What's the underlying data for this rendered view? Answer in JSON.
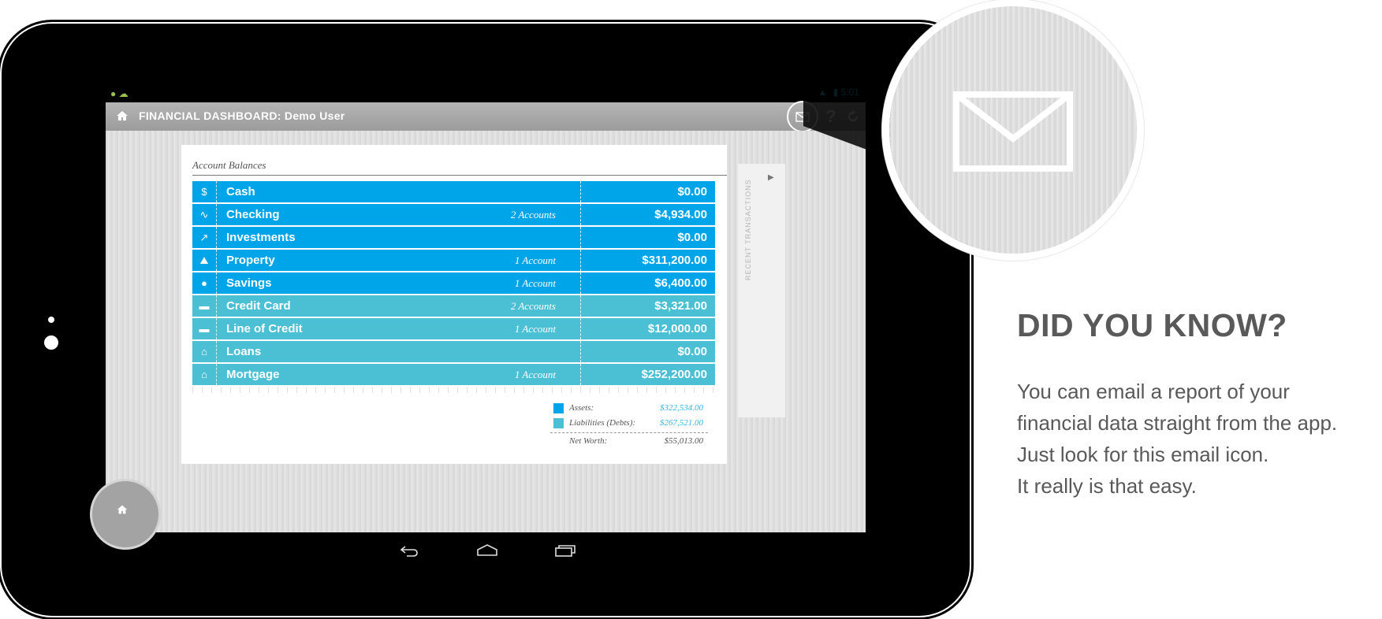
{
  "app": {
    "status_bar": {
      "time": "5:01"
    },
    "action_bar": {
      "title": "FINANCIAL DASHBOARD: Demo User",
      "help_label": "?",
      "refresh_icon": "refresh-icon",
      "mail_icon": "mail-icon",
      "home_icon": "home-icon"
    },
    "card": {
      "title": "Account Balances",
      "rows": [
        {
          "name": "Cash",
          "count": "",
          "amount": "$0.00",
          "kind": "asset",
          "icon": "dollar-coin-icon"
        },
        {
          "name": "Checking",
          "count": "2 Accounts",
          "amount": "$4,934.00",
          "kind": "asset",
          "icon": "signature-icon"
        },
        {
          "name": "Investments",
          "count": "",
          "amount": "$0.00",
          "kind": "asset",
          "icon": "chart-trend-icon"
        },
        {
          "name": "Property",
          "count": "1 Account",
          "amount": "$311,200.00",
          "kind": "asset",
          "icon": "car-icon"
        },
        {
          "name": "Savings",
          "count": "1 Account",
          "amount": "$6,400.00",
          "kind": "asset",
          "icon": "piggy-bank-icon"
        },
        {
          "name": "Credit Card",
          "count": "2 Accounts",
          "amount": "$3,321.00",
          "kind": "liability",
          "icon": "credit-card-icon"
        },
        {
          "name": "Line of Credit",
          "count": "1 Account",
          "amount": "$12,000.00",
          "kind": "liability",
          "icon": "credit-card-icon"
        },
        {
          "name": "Loans",
          "count": "",
          "amount": "$0.00",
          "kind": "liability",
          "icon": "bank-icon"
        },
        {
          "name": "Mortgage",
          "count": "1 Account",
          "amount": "$252,200.00",
          "kind": "liability",
          "icon": "house-icon"
        }
      ],
      "summary": {
        "assets_label": "Assets:",
        "assets_value": "$322,534.00",
        "liabilities_label": "Liabilities (Debts):",
        "liabilities_value": "$267,521.00",
        "net_label": "Net Worth:",
        "net_value": "$55,013.00"
      }
    },
    "drawer": {
      "label": "RECENT TRANSACTIONS"
    },
    "colors": {
      "asset": "#00a4e8",
      "liability": "#4bbfd4"
    }
  },
  "promo": {
    "headline": "DID YOU KNOW?",
    "lines": [
      "You can email a report of your",
      "financial data straight from the app.",
      "Just look for this email icon.",
      "It really is that easy."
    ]
  }
}
